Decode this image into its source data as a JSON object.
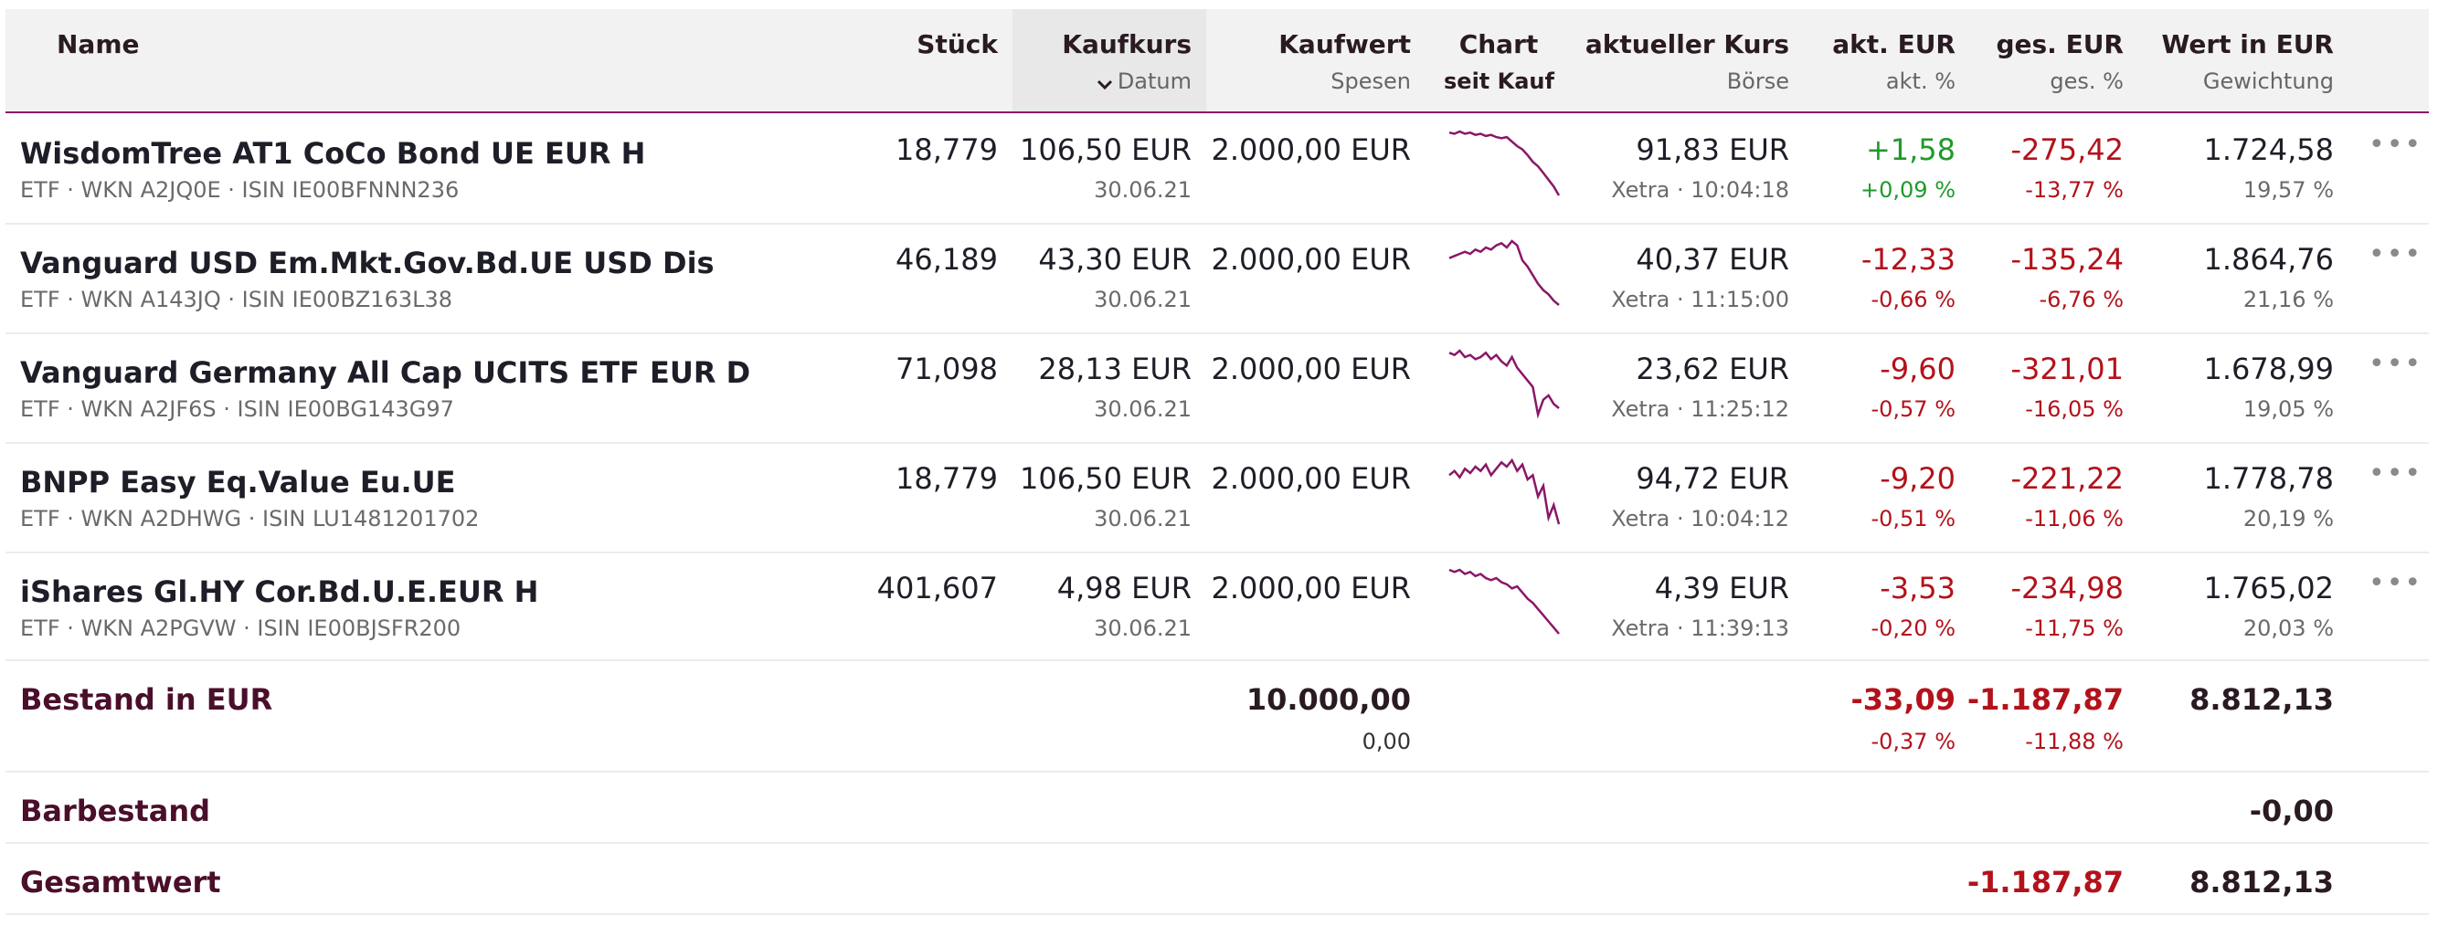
{
  "header": {
    "name": "Name",
    "stueck": "Stück",
    "kaufkurs": "Kaufkurs",
    "datum": "Datum",
    "kaufwert": "Kaufwert",
    "spesen": "Spesen",
    "chart": "Chart",
    "seit_kauf": "seit Kauf",
    "aktueller_kurs": "aktueller Kurs",
    "boerse": "Börse",
    "akt_eur": "akt. EUR",
    "akt_pct": "akt. %",
    "ges_eur": "ges. EUR",
    "ges_pct": "ges. %",
    "wert_eur": "Wert in EUR",
    "gewichtung": "Gewichtung"
  },
  "colors": {
    "accent": "#8a1768",
    "positive": "#1f9a2a",
    "negative": "#b3121b"
  },
  "rows": [
    {
      "name": "WisdomTree AT1 CoCo Bond UE EUR H",
      "sub": "ETF · WKN A2JQ0E · ISIN IE00BFNNN236",
      "stueck": "18,779",
      "kaufkurs": "106,50 EUR",
      "datum": "30.06.21",
      "kaufwert": "2.000,00 EUR",
      "kurs": "91,83 EUR",
      "boerse": "Xetra · 10:04:18",
      "akt_eur": "+1,58",
      "akt_pct": "+0,09 %",
      "akt_sign": "pos",
      "ges_eur": "-275,42",
      "ges_pct": "-13,77 %",
      "wert": "1.724,58",
      "gewichtung": "19,57 %",
      "spark": [
        10,
        11,
        9,
        11,
        10,
        12,
        11,
        13,
        12,
        14,
        15,
        14,
        18,
        22,
        25,
        30,
        36,
        40,
        46,
        52,
        58,
        66
      ]
    },
    {
      "name": "Vanguard USD Em.Mkt.Gov.Bd.UE USD Dis",
      "sub": "ETF · WKN A143JQ · ISIN IE00BZ163L38",
      "stueck": "46,189",
      "kaufkurs": "43,30 EUR",
      "datum": "30.06.21",
      "kaufwert": "2.000,00 EUR",
      "kurs": "40,37 EUR",
      "boerse": "Xetra · 11:15:00",
      "akt_eur": "-12,33",
      "akt_pct": "-0,66 %",
      "akt_sign": "neg",
      "ges_eur": "-135,24",
      "ges_pct": "-6,76 %",
      "wert": "1.864,76",
      "gewichtung": "21,16 %",
      "spark": [
        20,
        18,
        16,
        14,
        16,
        12,
        14,
        10,
        12,
        8,
        6,
        10,
        4,
        8,
        22,
        28,
        36,
        44,
        50,
        54,
        60,
        64
      ]
    },
    {
      "name": "Vanguard Germany All Cap UCITS ETF EUR D",
      "sub": "ETF · WKN A2JF6S · ISIN IE00BG143G97",
      "stueck": "71,098",
      "kaufkurs": "28,13 EUR",
      "datum": "30.06.21",
      "kaufwert": "2.000,00 EUR",
      "kurs": "23,62 EUR",
      "boerse": "Xetra · 11:25:12",
      "akt_eur": "-9,60",
      "akt_pct": "-0,57 %",
      "akt_sign": "neg",
      "ges_eur": "-321,01",
      "ges_pct": "-16,05 %",
      "wert": "1.678,99",
      "gewichtung": "19,05 %",
      "spark": [
        8,
        10,
        6,
        12,
        10,
        14,
        12,
        8,
        14,
        10,
        16,
        20,
        12,
        22,
        28,
        34,
        40,
        66,
        52,
        48,
        56,
        60
      ]
    },
    {
      "name": "BNPP Easy Eq.Value Eu.UE",
      "sub": "ETF · WKN A2DHWG · ISIN LU1481201702",
      "stueck": "18,779",
      "kaufkurs": "106,50 EUR",
      "datum": "30.06.21",
      "kaufwert": "2.000,00 EUR",
      "kurs": "94,72 EUR",
      "boerse": "Xetra · 10:04:12",
      "akt_eur": "-9,20",
      "akt_pct": "-0,51 %",
      "akt_sign": "neg",
      "ges_eur": "-221,22",
      "ges_pct": "-11,06 %",
      "wert": "1.778,78",
      "gewichtung": "20,19 %",
      "spark": [
        20,
        16,
        22,
        14,
        18,
        12,
        16,
        10,
        20,
        14,
        8,
        12,
        6,
        16,
        10,
        24,
        20,
        40,
        30,
        60,
        48,
        66
      ]
    },
    {
      "name": "iShares Gl.HY Cor.Bd.U.E.EUR H",
      "sub": "ETF · WKN A2PGVW · ISIN IE00BJSFR200",
      "stueck": "401,607",
      "kaufkurs": "4,98 EUR",
      "datum": "30.06.21",
      "kaufwert": "2.000,00 EUR",
      "kurs": "4,39 EUR",
      "boerse": "Xetra · 11:39:13",
      "akt_eur": "-3,53",
      "akt_pct": "-0,20 %",
      "akt_sign": "neg",
      "ges_eur": "-234,98",
      "ges_pct": "-11,75 %",
      "wert": "1.765,02",
      "gewichtung": "20,03 %",
      "spark": [
        6,
        8,
        6,
        10,
        8,
        12,
        10,
        14,
        16,
        14,
        18,
        20,
        24,
        22,
        28,
        34,
        38,
        44,
        50,
        56,
        62,
        68
      ]
    }
  ],
  "bestand": {
    "label": "Bestand in EUR",
    "kaufwert": "10.000,00",
    "spesen": "0,00",
    "akt_eur": "-33,09",
    "akt_pct": "-0,37 %",
    "ges_eur": "-1.187,87",
    "ges_pct": "-11,88 %",
    "wert": "8.812,13"
  },
  "barbestand": {
    "label": "Barbestand",
    "wert": "-0,00"
  },
  "gesamtwert": {
    "label": "Gesamtwert",
    "ges_eur": "-1.187,87",
    "wert": "8.812,13"
  },
  "more_glyph": "•••"
}
